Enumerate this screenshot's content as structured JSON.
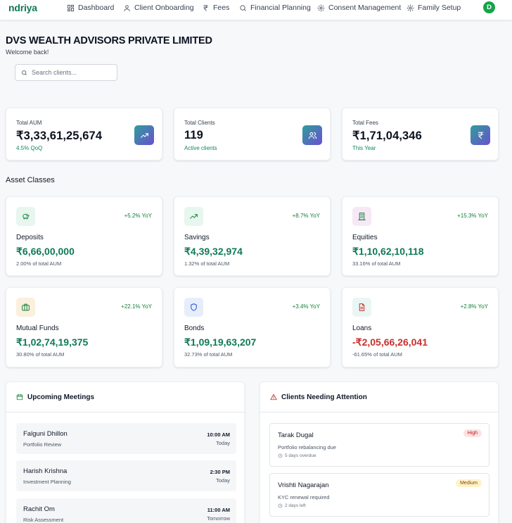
{
  "nav": {
    "brand": "ndriya",
    "items": [
      {
        "label": "Dashboard",
        "icon": "dashboard-icon"
      },
      {
        "label": "Client Onboarding",
        "icon": "user-icon"
      },
      {
        "label": "Fees",
        "icon": "rupee-icon"
      },
      {
        "label": "Financial Planning",
        "icon": "search-icon"
      },
      {
        "label": "Consent Management",
        "icon": "gear-icon"
      },
      {
        "label": "Family Setup",
        "icon": "gear-icon"
      }
    ],
    "avatar": "D"
  },
  "header": {
    "company": "DVS WEALTH ADVISORS PRIVATE LIMITED",
    "welcome": "Welcome back!",
    "search_placeholder": "Search clients..."
  },
  "stats": [
    {
      "label": "Total AUM",
      "value": "₹3,33,61,25,674",
      "sub": "4.5% QoQ",
      "icon": "trend-up-icon"
    },
    {
      "label": "Total Clients",
      "value": "119",
      "sub": "Active clients",
      "icon": "users-icon"
    },
    {
      "label": "Total Fees",
      "value": "₹1,71,04,346",
      "sub": "This Year",
      "icon": "rupee-icon"
    }
  ],
  "asset_section_title": "Asset Classes",
  "assets": [
    {
      "name": "Deposits",
      "value": "₹6,66,00,000",
      "pct": "2.00% of total AUM",
      "yoy": "+5.2% YoY",
      "icon": "piggy-bank-icon",
      "tint": "#e7f6ee",
      "color": "#15803d"
    },
    {
      "name": "Savings",
      "value": "₹4,39,32,974",
      "pct": "1.32% of total AUM",
      "yoy": "+8.7% YoY",
      "icon": "trend-up-icon",
      "tint": "#e7f6ee",
      "color": "#15803d"
    },
    {
      "name": "Equities",
      "value": "₹1,10,62,10,118",
      "pct": "33.16% of total AUM",
      "yoy": "+15.3% YoY",
      "icon": "building-icon",
      "tint": "#f7e8f5",
      "color": "#15803d"
    },
    {
      "name": "Mutual Funds",
      "value": "₹1,02,74,19,375",
      "pct": "30.80% of total AUM",
      "yoy": "+22.1% YoY",
      "icon": "briefcase-icon",
      "tint": "#fbf0dd",
      "color": "#15803d"
    },
    {
      "name": "Bonds",
      "value": "₹1,09,19,63,207",
      "pct": "32.73% of total AUM",
      "yoy": "+3.4% YoY",
      "icon": "shield-icon",
      "tint": "#e6eefb",
      "color": "#1d4ed8"
    },
    {
      "name": "Loans",
      "value": "-₹2,05,66,26,041",
      "pct": "-61.65% of total AUM",
      "yoy": "+2.8% YoY",
      "icon": "document-icon",
      "tint": "#eaf6f3",
      "color": "#c9302c",
      "negative": true
    }
  ],
  "meetings": {
    "title": "Upcoming Meetings",
    "items": [
      {
        "name": "Falguni Dhillon",
        "type": "Portfolio Review",
        "time": "10:00 AM",
        "day": "Today"
      },
      {
        "name": "Harish Krishna",
        "type": "Investment Planning",
        "time": "2:30 PM",
        "day": "Today"
      },
      {
        "name": "Rachit Om",
        "type": "Risk Assessment",
        "time": "11:00 AM",
        "day": "Tomorrow"
      }
    ]
  },
  "attention": {
    "title": "Clients Needing Attention",
    "items": [
      {
        "name": "Tarak Dugal",
        "issue": "Portfolio rebalancing due",
        "due": "5 days overdue",
        "priority": "High"
      },
      {
        "name": "Vrishti Nagarajan",
        "issue": "KYC renewal required",
        "due": "2 days left",
        "priority": "Medium"
      }
    ]
  },
  "colors": {
    "brand": "#0f7a55",
    "positive": "#15803d",
    "negative": "#c9302c",
    "avatar": "#16a34a"
  }
}
